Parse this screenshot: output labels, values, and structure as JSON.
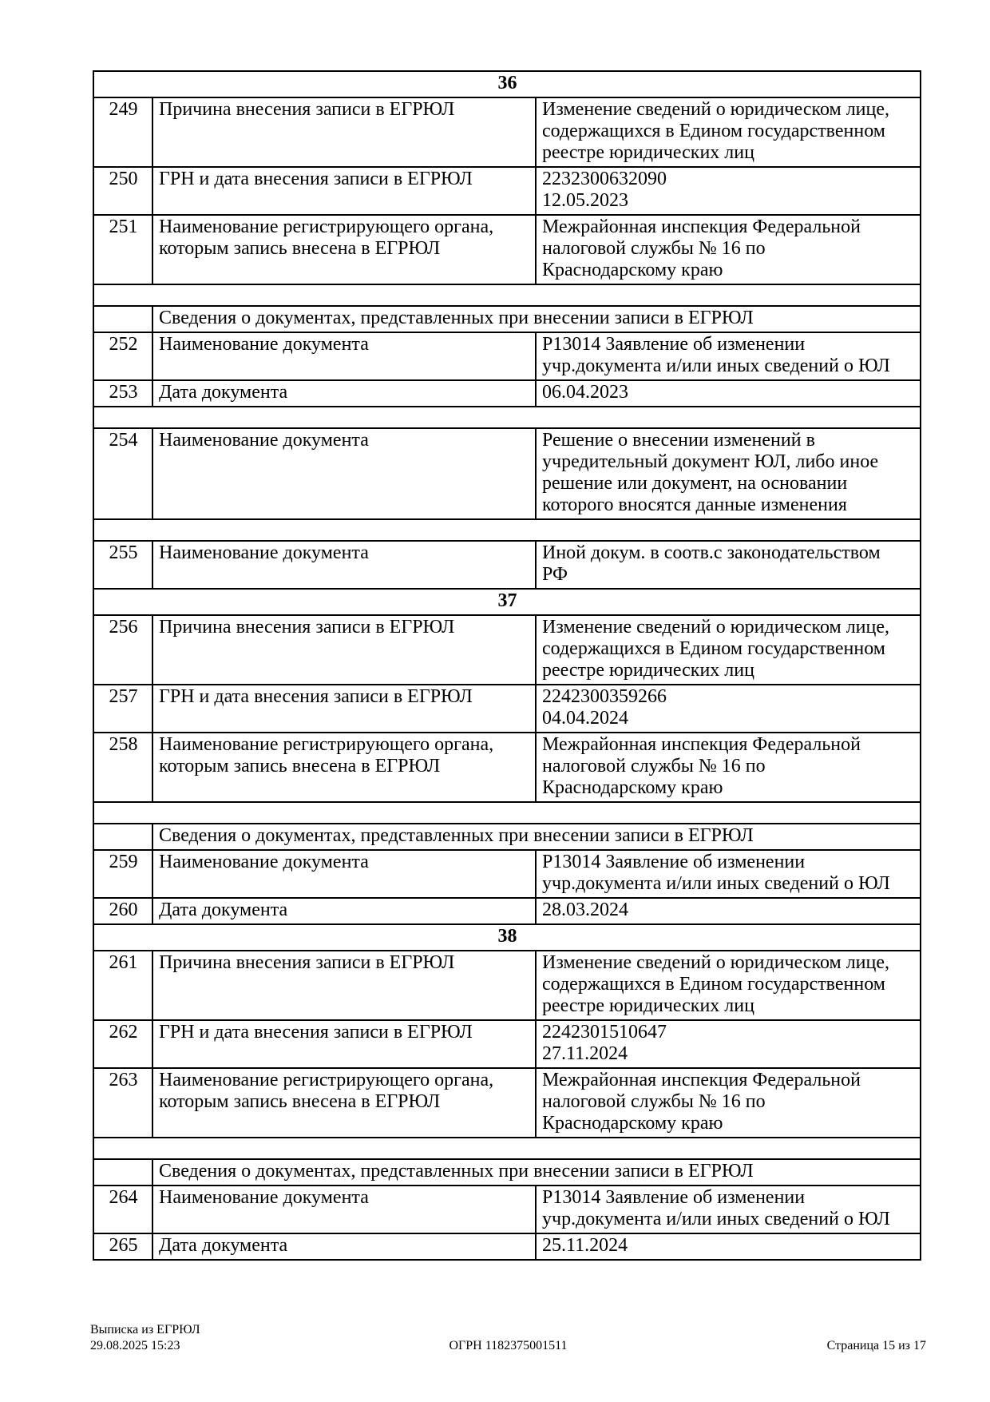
{
  "document": {
    "table": {
      "rows": [
        {
          "type": "section",
          "label": "36"
        },
        {
          "type": "data",
          "num": "249",
          "label": "Причина внесения записи в ЕГРЮЛ",
          "value": "Изменение сведений о юридическом лице,\nсодержащихся в Едином государственном\nреестре юридических лиц"
        },
        {
          "type": "data",
          "num": "250",
          "label": "ГРН и дата внесения записи в ЕГРЮЛ",
          "value": "2232300632090\n12.05.2023"
        },
        {
          "type": "data",
          "num": "251",
          "label": "Наименование регистрирующего органа,\nкоторым запись внесена в ЕГРЮЛ",
          "value": "Межрайонная инспекция Федеральной\nналоговой службы № 16 по\nКраснодарскому краю"
        },
        {
          "type": "spacer"
        },
        {
          "type": "subheader",
          "label": "Сведения о документах, представленных при внесении записи в ЕГРЮЛ"
        },
        {
          "type": "data",
          "num": "252",
          "label": "Наименование документа",
          "value": "Р13014 Заявление об изменении\nучр.документа и/или иных сведений о ЮЛ"
        },
        {
          "type": "data",
          "num": "253",
          "label": "Дата документа",
          "value": "06.04.2023"
        },
        {
          "type": "spacer"
        },
        {
          "type": "data",
          "num": "254",
          "label": "Наименование документа",
          "value": "Решение о внесении изменений в\nучредительный документ ЮЛ, либо иное\nрешение или документ, на основании\nкоторого вносятся данные изменения"
        },
        {
          "type": "spacer"
        },
        {
          "type": "data",
          "num": "255",
          "label": "Наименование документа",
          "value": "Иной докум. в соотв.с законодательством\nРФ"
        },
        {
          "type": "section",
          "label": "37"
        },
        {
          "type": "data",
          "num": "256",
          "label": "Причина внесения записи в ЕГРЮЛ",
          "value": "Изменение сведений о юридическом лице,\nсодержащихся в Едином государственном\nреестре юридических лиц"
        },
        {
          "type": "data",
          "num": "257",
          "label": "ГРН и дата внесения записи в ЕГРЮЛ",
          "value": "2242300359266\n04.04.2024"
        },
        {
          "type": "data",
          "num": "258",
          "label": "Наименование регистрирующего органа,\nкоторым запись внесена в ЕГРЮЛ",
          "value": "Межрайонная инспекция Федеральной\nналоговой службы № 16 по\nКраснодарскому краю"
        },
        {
          "type": "spacer"
        },
        {
          "type": "subheader",
          "label": "Сведения о документах, представленных при внесении записи в ЕГРЮЛ"
        },
        {
          "type": "data",
          "num": "259",
          "label": "Наименование документа",
          "value": "Р13014 Заявление об изменении\nучр.документа и/или иных сведений о ЮЛ"
        },
        {
          "type": "data",
          "num": "260",
          "label": "Дата документа",
          "value": "28.03.2024"
        },
        {
          "type": "section",
          "label": "38"
        },
        {
          "type": "data",
          "num": "261",
          "label": "Причина внесения записи в ЕГРЮЛ",
          "value": "Изменение сведений о юридическом лице,\nсодержащихся в Едином государственном\nреестре юридических лиц"
        },
        {
          "type": "data",
          "num": "262",
          "label": "ГРН и дата внесения записи в ЕГРЮЛ",
          "value": "2242301510647\n27.11.2024"
        },
        {
          "type": "data",
          "num": "263",
          "label": "Наименование регистрирующего органа,\nкоторым запись внесена в ЕГРЮЛ",
          "value": "Межрайонная инспекция Федеральной\nналоговой службы № 16 по\nКраснодарскому краю"
        },
        {
          "type": "spacer"
        },
        {
          "type": "subheader",
          "label": "Сведения о документах, представленных при внесении записи в ЕГРЮЛ"
        },
        {
          "type": "data",
          "num": "264",
          "label": "Наименование документа",
          "value": "Р13014 Заявление об изменении\nучр.документа и/или иных сведений о ЮЛ"
        },
        {
          "type": "data",
          "num": "265",
          "label": "Дата документа",
          "value": "25.11.2024"
        }
      ]
    },
    "footer": {
      "doc_type": "Выписка из ЕГРЮЛ",
      "generated_at": "29.08.2025 15:23",
      "ogrn": "ОГРН 1182375001511",
      "page_info": "Страница 15 из 17"
    }
  }
}
